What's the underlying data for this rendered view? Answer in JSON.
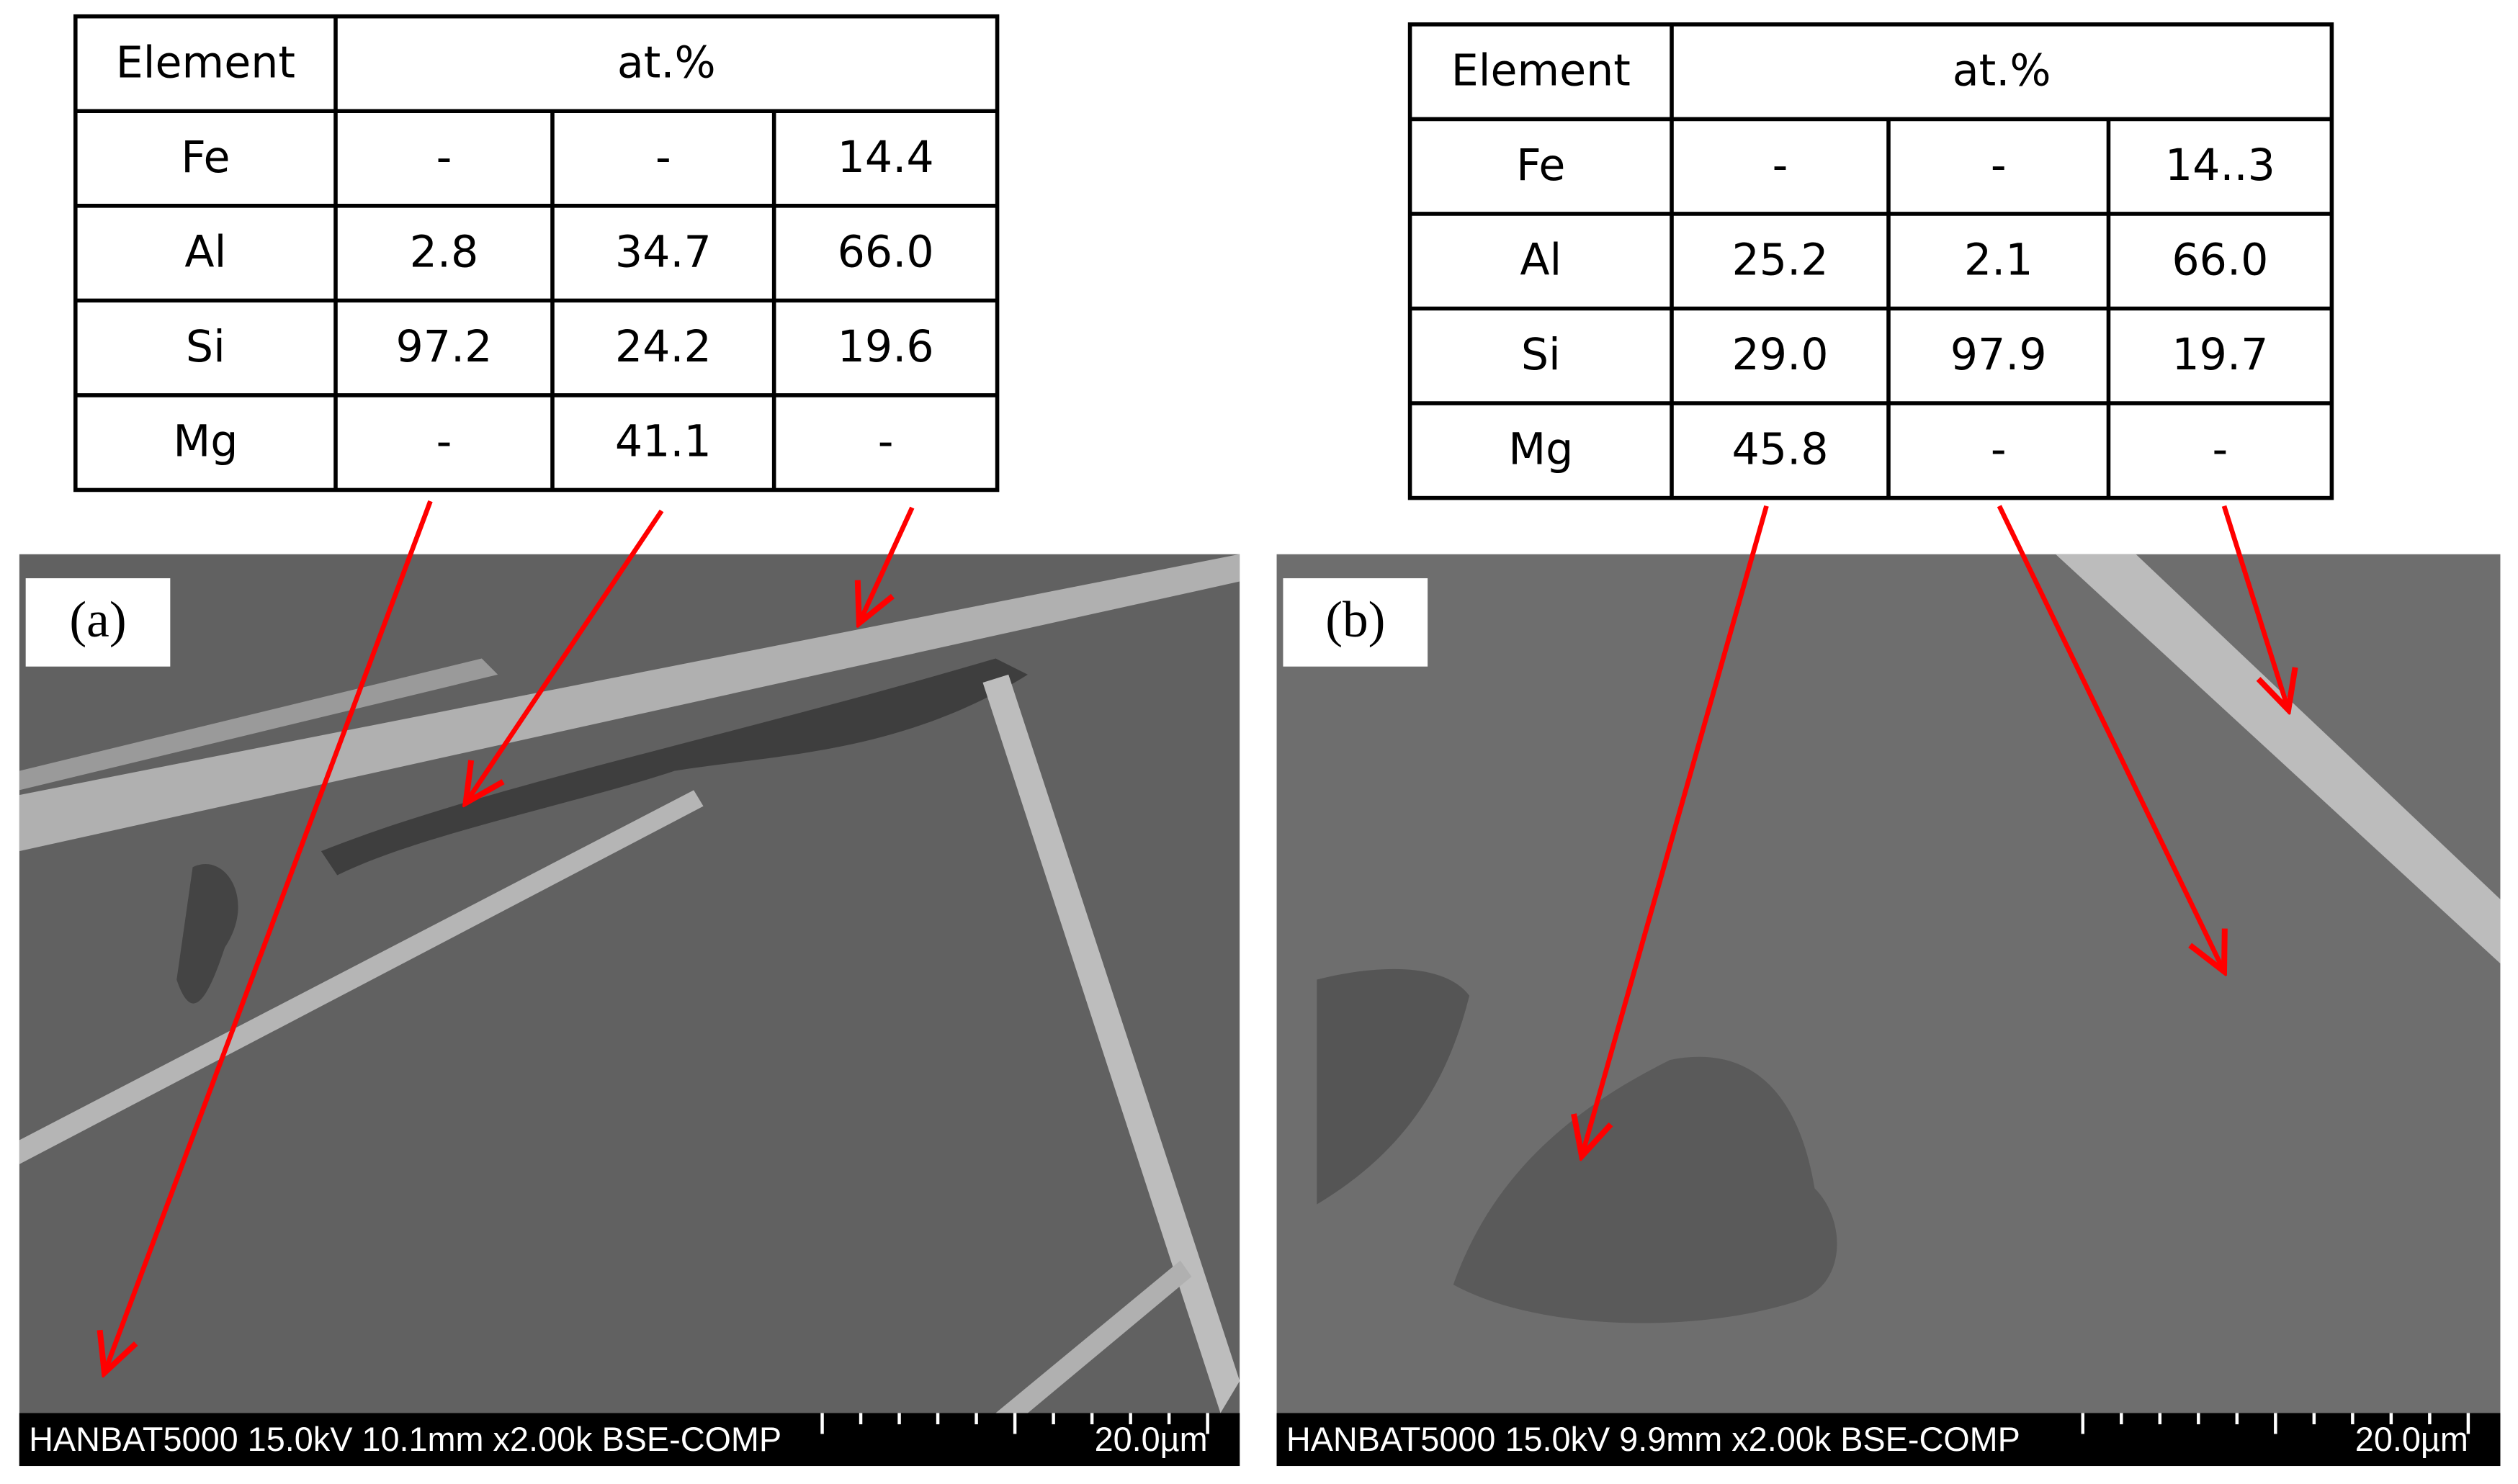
{
  "panels": [
    {
      "label": "(a)",
      "table": {
        "header": [
          "Element",
          "at.%"
        ],
        "rows": [
          [
            "Fe",
            "-",
            "-",
            "14.4"
          ],
          [
            "Al",
            "2.8",
            "34.7",
            "66.0"
          ],
          [
            "Si",
            "97.2",
            "24.2",
            "19.6"
          ],
          [
            "Mg",
            "-",
            "41.1",
            "-"
          ]
        ]
      },
      "sem_info": "HANBAT5000 15.0kV 10.1mm x2.00k BSE-COMP",
      "scale_bar": "20.0µm"
    },
    {
      "label": "(b)",
      "table": {
        "header": [
          "Element",
          "at.%"
        ],
        "rows": [
          [
            "Fe",
            "-",
            "-",
            "14..3"
          ],
          [
            "Al",
            "25.2",
            "2.1",
            "66.0"
          ],
          [
            "Si",
            "29.0",
            "97.9",
            "19.7"
          ],
          [
            "Mg",
            "45.8",
            "-",
            "-"
          ]
        ]
      },
      "sem_info": "HANBAT5000 15.0kV 9.9mm x2.00k BSE-COMP",
      "scale_bar": "20.0µm"
    }
  ]
}
